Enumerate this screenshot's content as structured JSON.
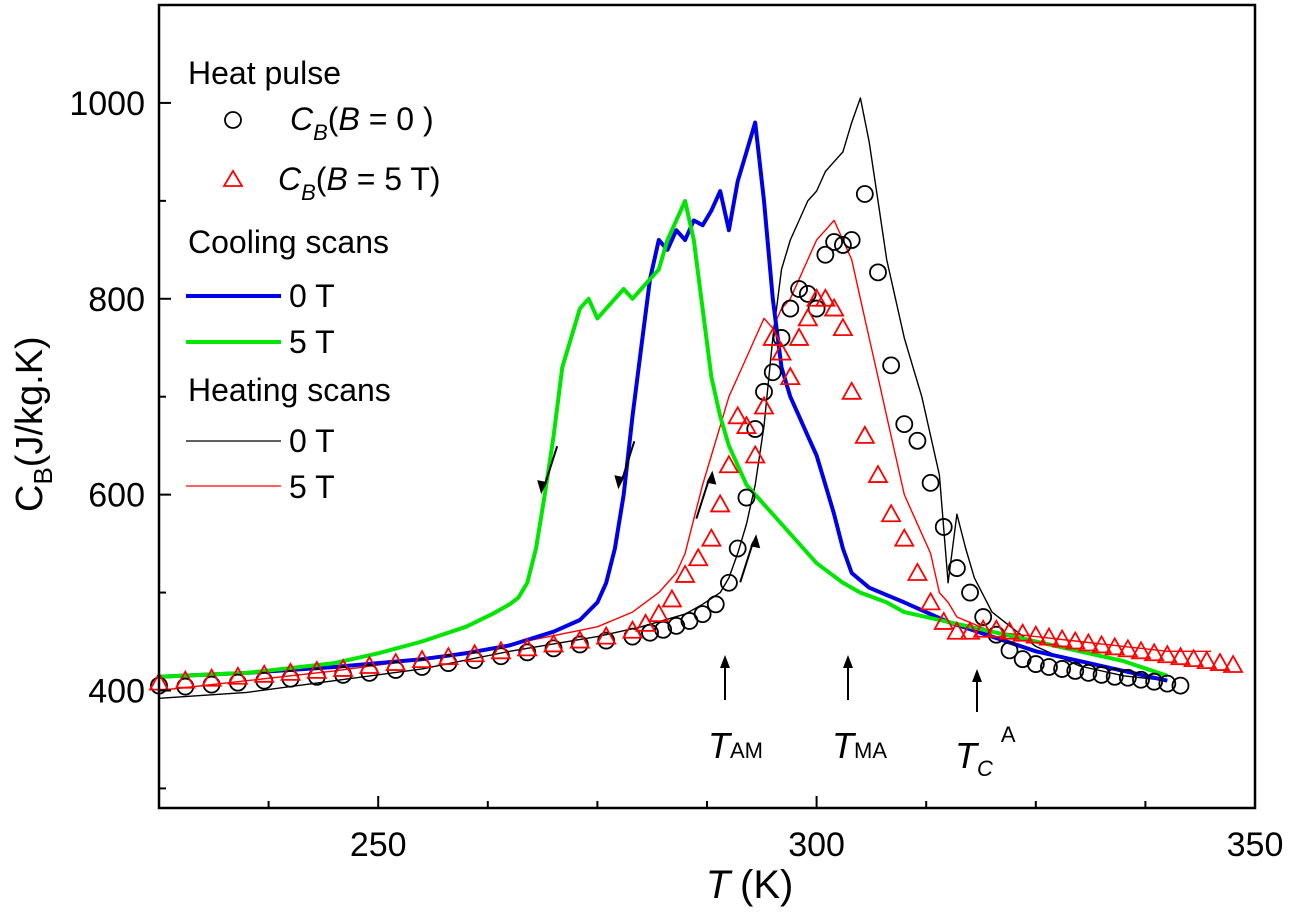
{
  "chart_data": {
    "type": "line",
    "xlabel": "T (K)",
    "ylabel": "C_B(J/kg.K)",
    "xlim": [
      225,
      350
    ],
    "ylim": [
      280,
      1100
    ],
    "xticks": [
      250,
      300,
      350
    ],
    "yticks": [
      400,
      600,
      800,
      1000
    ],
    "grid": false,
    "legend_position": "top-left",
    "legend": {
      "heat_pulse_title": "Heat pulse",
      "hp_b0": "C_B(B = 0 )",
      "hp_b5": "C_B(B = 5 T)",
      "cooling_title": "Cooling scans",
      "cool_0": "0 T",
      "cool_5": "5 T",
      "heating_title": "Heating scans",
      "heat_0": "0 T",
      "heat_5": "5 T"
    },
    "colors": {
      "cool_0": "#0000e6",
      "cool_5": "#00e600",
      "heat_0": "#000000",
      "heat_5": "#ff0000",
      "hp_0": "#000000",
      "hp_5": "#ff0000"
    },
    "annotations": [
      {
        "label": "T_AM",
        "x": 289
      },
      {
        "label": "T_MA",
        "x": 303.5
      },
      {
        "label": "T_C^A",
        "x": 318
      }
    ],
    "direction_arrows": [
      {
        "series": "cool_5",
        "dir": "down",
        "x": 269.5,
        "y": 625
      },
      {
        "series": "cool_0",
        "dir": "down",
        "x": 278.3,
        "y": 630
      },
      {
        "series": "heat_5",
        "dir": "up",
        "x": 287.2,
        "y": 600
      },
      {
        "series": "heat_0",
        "dir": "up",
        "x": 292.2,
        "y": 535
      }
    ],
    "series": [
      {
        "name": "Cooling scans 0 T",
        "key": "cool_0",
        "style": "line-thick",
        "x": [
          225,
          235,
          245,
          255,
          260,
          265,
          270,
          273,
          275,
          276,
          277,
          278,
          279,
          280,
          281,
          282,
          283,
          284,
          285,
          286,
          287,
          288,
          289,
          290,
          291,
          292,
          293,
          294,
          295,
          296,
          297,
          298,
          299,
          300,
          301,
          302,
          303,
          304,
          306,
          310,
          315,
          320,
          325,
          330,
          335,
          340
        ],
        "y": [
          414,
          418,
          424,
          432,
          438,
          446,
          460,
          472,
          490,
          510,
          545,
          600,
          680,
          750,
          820,
          860,
          850,
          870,
          860,
          880,
          875,
          890,
          910,
          870,
          920,
          950,
          980,
          900,
          800,
          730,
          700,
          680,
          660,
          640,
          610,
          580,
          545,
          520,
          505,
          490,
          470,
          455,
          440,
          430,
          420,
          410
        ]
      },
      {
        "name": "Cooling scans 5 T",
        "key": "cool_5",
        "style": "line-thick",
        "x": [
          225,
          235,
          245,
          250,
          255,
          260,
          263,
          265,
          266,
          267,
          268,
          269,
          270,
          271,
          272,
          273,
          274,
          275,
          276,
          277,
          278,
          279,
          280,
          281,
          282,
          283,
          284,
          285,
          286,
          287,
          288,
          289,
          290,
          291,
          292,
          293,
          294,
          295,
          297,
          300,
          303,
          305,
          308,
          310,
          315,
          320,
          325,
          330,
          335,
          340
        ],
        "y": [
          414,
          418,
          428,
          438,
          450,
          465,
          478,
          488,
          495,
          510,
          545,
          600,
          660,
          730,
          760,
          790,
          800,
          780,
          790,
          800,
          810,
          800,
          810,
          820,
          830,
          860,
          880,
          900,
          860,
          790,
          720,
          680,
          650,
          630,
          610,
          600,
          590,
          580,
          560,
          530,
          510,
          500,
          490,
          480,
          470,
          460,
          450,
          440,
          430,
          415
        ]
      },
      {
        "name": "Heating scans 0 T",
        "key": "heat_0",
        "style": "line-thin",
        "x": [
          225,
          235,
          245,
          255,
          265,
          275,
          280,
          285,
          287,
          289,
          290,
          291,
          292,
          293,
          294,
          295,
          296,
          297,
          298,
          299,
          300,
          301,
          302,
          303,
          304,
          305,
          306,
          307,
          308,
          309,
          310,
          311,
          312,
          313,
          314,
          315,
          316,
          317,
          318,
          320,
          325,
          330,
          335,
          340
        ],
        "y": [
          392,
          398,
          410,
          422,
          440,
          455,
          465,
          478,
          488,
          500,
          515,
          540,
          570,
          610,
          670,
          760,
          830,
          860,
          880,
          900,
          910,
          930,
          940,
          950,
          980,
          1005,
          960,
          900,
          840,
          800,
          760,
          730,
          700,
          660,
          620,
          510,
          580,
          545,
          515,
          480,
          445,
          425,
          415,
          410
        ]
      },
      {
        "name": "Heating scans 5 T",
        "key": "heat_5",
        "style": "line-thin",
        "x": [
          225,
          235,
          245,
          255,
          265,
          275,
          279,
          282,
          284,
          285,
          286,
          287,
          288,
          289,
          290,
          291,
          292,
          293,
          294,
          295,
          296,
          297,
          298,
          299,
          300,
          301,
          302,
          303,
          304,
          305,
          306,
          307,
          308,
          309,
          310,
          311,
          312,
          313,
          314,
          315,
          316,
          320,
          325,
          330,
          335,
          340,
          345
        ],
        "y": [
          400,
          410,
          420,
          432,
          447,
          465,
          480,
          500,
          520,
          540,
          575,
          610,
          640,
          670,
          700,
          720,
          740,
          760,
          780,
          770,
          790,
          800,
          820,
          840,
          860,
          870,
          880,
          860,
          840,
          800,
          760,
          720,
          680,
          640,
          600,
          580,
          560,
          540,
          500,
          490,
          475,
          460,
          455,
          450,
          445,
          440,
          440
        ]
      },
      {
        "name": "Heat pulse C_B(B = 0)",
        "key": "hp_0",
        "style": "circle",
        "x": [
          225,
          228,
          231,
          234,
          237,
          240,
          243,
          246,
          249,
          252,
          255,
          258,
          261,
          264,
          267,
          270,
          273,
          276,
          279,
          281,
          282.5,
          284,
          285.5,
          287,
          288.5,
          290,
          291,
          292,
          293,
          294,
          295,
          296,
          297,
          298,
          299,
          300,
          301,
          302,
          303,
          304,
          305.5,
          307,
          308.5,
          310,
          311.5,
          313,
          314.5,
          316,
          317.5,
          319,
          320.5,
          322,
          323.5,
          325,
          326.5,
          328,
          329.5,
          331,
          332.5,
          334,
          335.5,
          337,
          338.5,
          340,
          341.5
        ],
        "y": [
          405,
          404,
          406,
          408,
          410,
          412,
          414,
          416,
          418,
          421,
          424,
          428,
          431,
          435,
          439,
          443,
          447,
          451,
          455,
          459,
          462,
          466,
          471,
          478,
          488,
          510,
          545,
          597,
          667,
          705,
          725,
          760,
          790,
          810,
          805,
          790,
          845,
          858,
          855,
          860,
          907,
          827,
          732,
          672,
          655,
          612,
          567,
          525,
          500,
          475,
          457,
          441,
          432,
          427,
          424,
          422,
          420,
          418,
          416,
          414,
          413,
          411,
          409,
          407,
          405
        ]
      },
      {
        "name": "Heat pulse C_B(B = 5 T)",
        "key": "hp_5",
        "style": "triangle",
        "x": [
          225,
          228,
          231,
          234,
          237,
          240,
          243,
          246,
          249,
          252,
          255,
          258,
          261,
          264,
          267,
          270,
          273,
          276,
          279,
          280.5,
          282,
          283.5,
          285,
          286.5,
          288,
          289,
          290,
          291,
          292,
          293,
          294,
          295,
          296,
          297,
          298,
          299,
          300,
          301,
          302,
          303,
          304,
          305.5,
          307,
          308.5,
          310,
          311.5,
          313,
          314.5,
          316,
          317.5,
          319,
          320.5,
          322,
          323.5,
          325,
          326.5,
          328,
          329.5,
          331,
          332.5,
          334,
          335.5,
          337,
          338.5,
          340,
          341.5,
          343,
          344.5,
          346,
          347.5
        ],
        "y": [
          408,
          410,
          412,
          414,
          416,
          418,
          420,
          422,
          425,
          428,
          431,
          434,
          437,
          440,
          443,
          447,
          451,
          455,
          461,
          468,
          478,
          493,
          518,
          535,
          555,
          590,
          630,
          680,
          670,
          640,
          690,
          760,
          745,
          720,
          760,
          780,
          800,
          800,
          790,
          770,
          705,
          660,
          620,
          580,
          555,
          520,
          490,
          470,
          460,
          460,
          462,
          462,
          460,
          458,
          456,
          454,
          452,
          450,
          448,
          446,
          444,
          442,
          440,
          438,
          436,
          434,
          432,
          430,
          428,
          426
        ]
      }
    ]
  }
}
